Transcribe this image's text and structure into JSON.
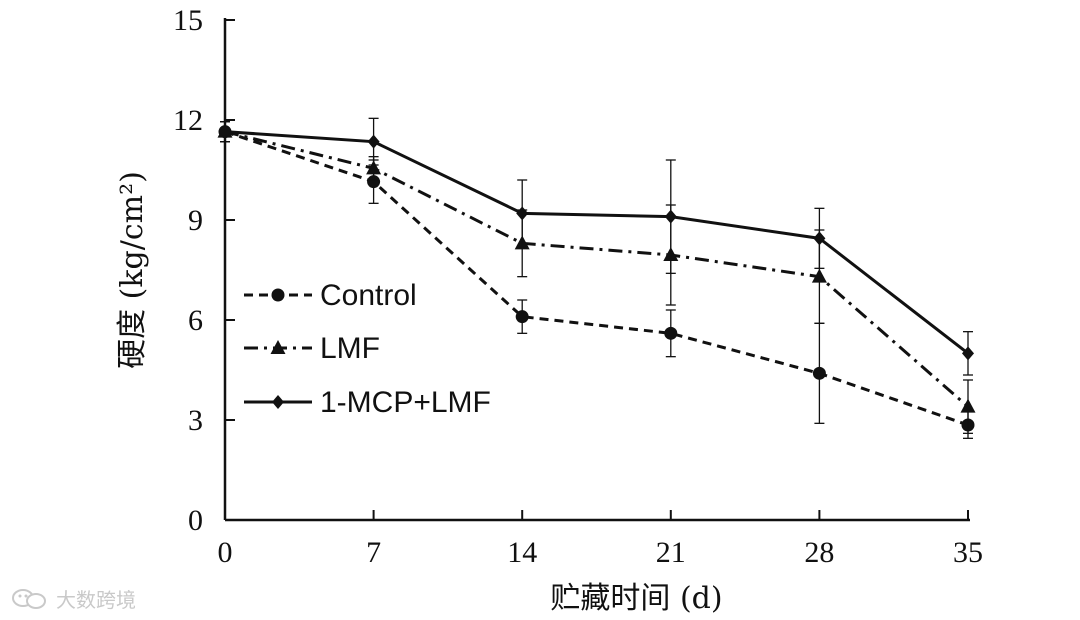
{
  "chart_data": {
    "type": "line",
    "title": "",
    "xlabel": "贮藏时间 (d)",
    "ylabel": "硬度 (kg/cm²)",
    "x": [
      0,
      7,
      14,
      21,
      28,
      35
    ],
    "xticks": [
      "0",
      "7",
      "14",
      "21",
      "28",
      "35"
    ],
    "yticks": [
      "0",
      "3",
      "6",
      "9",
      "12",
      "15"
    ],
    "xlim": [
      0,
      35
    ],
    "ylim": [
      0,
      15
    ],
    "grid": false,
    "legend_position": "left-middle",
    "series": [
      {
        "name": "Control",
        "marker": "circle",
        "line_style": "dashed",
        "values": [
          11.65,
          10.15,
          6.1,
          5.6,
          4.4,
          2.85
        ],
        "errors": [
          0.3,
          0.65,
          0.5,
          0.7,
          1.5,
          0.4
        ]
      },
      {
        "name": "LMF",
        "marker": "triangle",
        "line_style": "dash-dot",
        "values": [
          11.65,
          10.55,
          8.3,
          7.95,
          7.3,
          3.4
        ],
        "errors": [
          0.3,
          0.35,
          1.0,
          1.5,
          1.4,
          0.8
        ]
      },
      {
        "name": "1-MCP+LMF",
        "marker": "diamond",
        "line_style": "solid",
        "values": [
          11.65,
          11.35,
          9.2,
          9.1,
          8.45,
          5.0
        ],
        "errors": [
          0.3,
          0.7,
          1.0,
          1.7,
          0.9,
          0.65
        ]
      }
    ]
  },
  "watermark": {
    "text": "大数跨境",
    "logo_icon": "wechat-logo-icon"
  }
}
